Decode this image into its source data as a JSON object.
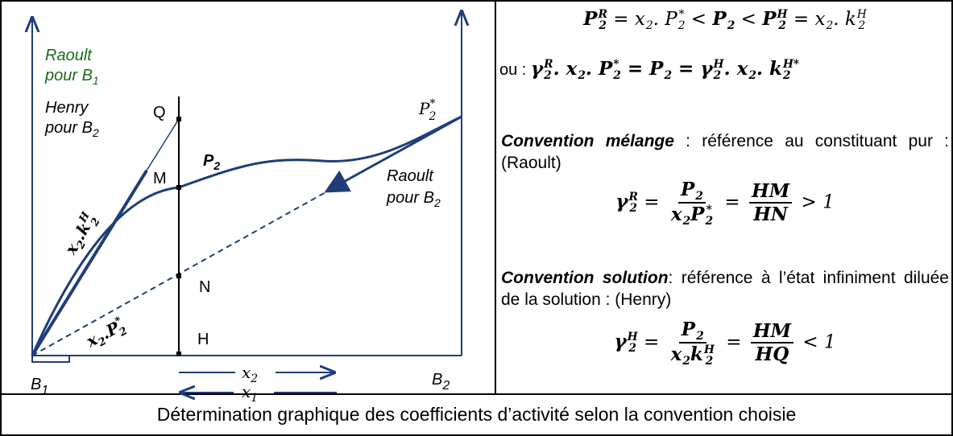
{
  "diagram": {
    "raoult_b1": {
      "line1": "Raoult",
      "line2": "pour B",
      "sub": "1"
    },
    "henry_b2": {
      "line1": "Henry",
      "line2": "pour B",
      "sub": "2"
    },
    "raoult_b2": {
      "line1": "Raoult",
      "line2": "pour B",
      "sub": "2"
    },
    "points": {
      "Q": "Q",
      "M": "M",
      "N": "N",
      "H": "H"
    },
    "curve_label": {
      "b": "P",
      "sub": "2"
    },
    "p2_star": {
      "b": "P",
      "sub": "2",
      "sup": "*"
    },
    "henry_line_label": {
      "b1": "x",
      "sub1": "2",
      "dot": ".",
      "b2": "k",
      "sub2": "2",
      "sup2": "H"
    },
    "raoult_line_label": {
      "b1": "x",
      "sub1": "2",
      "dot": ".",
      "b2": "P",
      "sub2": "2",
      "sup2": "*"
    },
    "b1": {
      "b": "B",
      "sub": "1"
    },
    "b2": {
      "b": "B",
      "sub": "2"
    },
    "x2": {
      "b": "x",
      "sub": "2"
    },
    "x1": {
      "b": "x",
      "sub": "1"
    }
  },
  "panel": {
    "f1": [
      {
        "b": "P",
        "sub": "2",
        "sup": "R",
        "bold": true
      },
      {
        "t": " = "
      },
      {
        "b": "x",
        "sub": "2"
      },
      {
        "t": ". "
      },
      {
        "b": "P",
        "sub": "2",
        "sup": "*"
      },
      {
        "t": " < "
      },
      {
        "b": "P",
        "sub": "2",
        "bold": true
      },
      {
        "t": " < "
      },
      {
        "b": "P",
        "sub": "2",
        "sup": "H",
        "bold": true
      },
      {
        "t": " = "
      },
      {
        "b": "x",
        "sub": "2"
      },
      {
        "t": ". "
      },
      {
        "b": "k",
        "sub": "2",
        "sup": "H"
      }
    ],
    "f2_prefix": "ou : ",
    "f2": [
      {
        "b": "γ",
        "sub": "2",
        "sup": "R",
        "bold": true
      },
      {
        "t": ". ",
        "bold": true
      },
      {
        "b": "x",
        "sub": "2",
        "bold": true
      },
      {
        "t": ". ",
        "bold": true
      },
      {
        "b": "P",
        "sub": "2",
        "sup": "*",
        "bold": true
      },
      {
        "t": " = ",
        "bold": true
      },
      {
        "b": "P",
        "sub": "2",
        "bold": true
      },
      {
        "t": " = ",
        "bold": true
      },
      {
        "b": "γ",
        "sub": "2",
        "sup": "H",
        "bold": true
      },
      {
        "t": ". ",
        "bold": true
      },
      {
        "b": "x",
        "sub": "2",
        "bold": true
      },
      {
        "t": ". ",
        "bold": true
      },
      {
        "b": "k",
        "sub": "2",
        "sup": "H*",
        "bold": true
      }
    ],
    "p1": {
      "term": "Convention mélange",
      "rest": " : référence au constituant pur : (Raoult)"
    },
    "f3": [
      {
        "b": "γ",
        "sub": "2",
        "sup": "R",
        "bold": true
      },
      {
        "t": " = "
      },
      {
        "num": [
          {
            "b": "P",
            "sub": "2",
            "bold": true
          }
        ],
        "den": [
          {
            "b": "x",
            "sub": "2",
            "bold": true
          },
          {
            "b": "P",
            "sub": "2",
            "sup": "*",
            "bold": true
          }
        ]
      },
      {
        "t": " = "
      },
      {
        "num": [
          {
            "t": "HM",
            "bold": true
          }
        ],
        "den": [
          {
            "t": "HN",
            "bold": true
          }
        ]
      },
      {
        "t": " > 1"
      }
    ],
    "p2": {
      "term": "Convention solution",
      "rest": ": référence à l’état infiniment diluée de la solution : (Henry)"
    },
    "f4": [
      {
        "b": "γ",
        "sub": "2",
        "sup": "H",
        "bold": true
      },
      {
        "t": " = "
      },
      {
        "num": [
          {
            "b": "P",
            "sub": "2",
            "bold": true
          }
        ],
        "den": [
          {
            "b": "x",
            "sub": "2",
            "bold": true
          },
          {
            "b": "k",
            "sub": "2",
            "sup": "H",
            "bold": true
          }
        ]
      },
      {
        "t": " = "
      },
      {
        "num": [
          {
            "t": "HM",
            "bold": true
          }
        ],
        "den": [
          {
            "t": "HQ",
            "bold": true
          }
        ]
      },
      {
        "t": " < 1"
      }
    ]
  },
  "caption": "Détermination graphique des coefficients d’activité selon la convention choisie"
}
